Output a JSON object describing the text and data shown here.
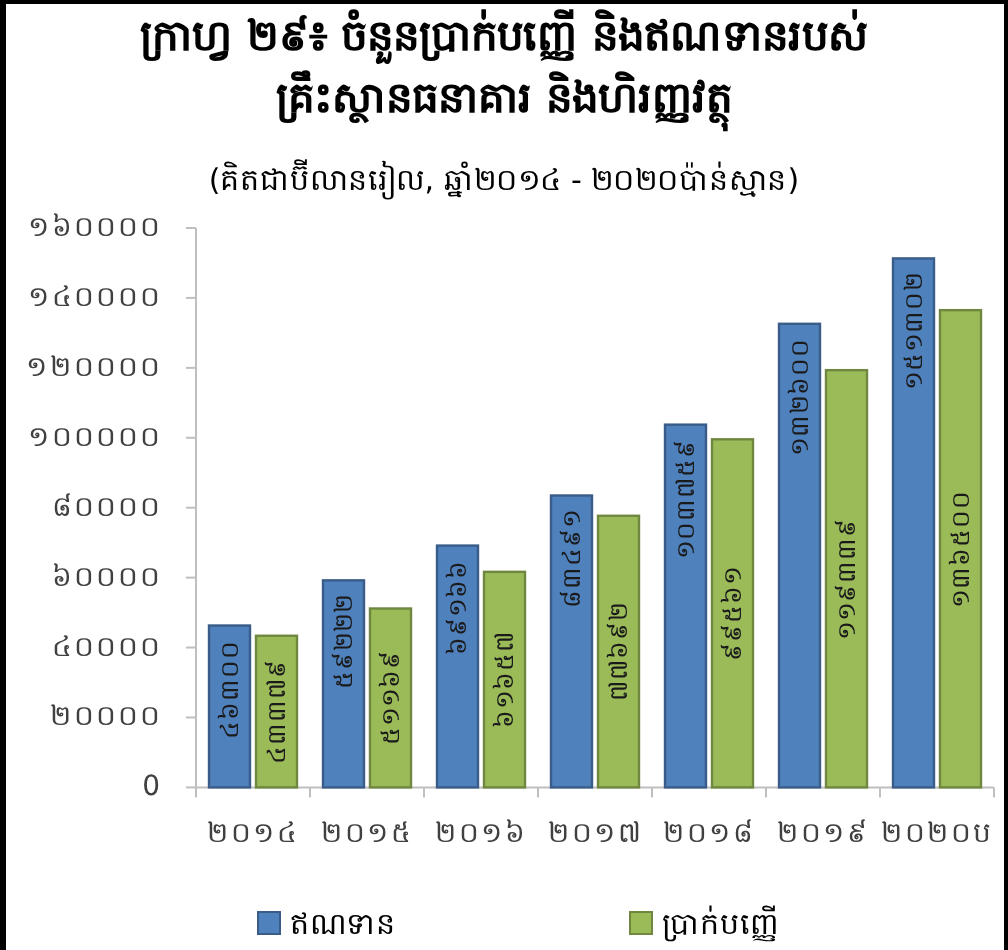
{
  "chart_data": {
    "type": "bar",
    "title": "ក្រាហ្វ ២៩៖ ចំនួនប្រាក់បញ្ញើ និងឥណទានរបស់ គ្រឹះស្ថានធនាគារ និងហិរញ្ញវត្ថុ",
    "subtitle": "(គិតជាប៊ីលានរៀល, ឆ្នាំ២០១៤ - ២០២០ប៉ាន់ស្មាន)",
    "categories": [
      "២០១៤",
      "២០១៥",
      "២០១៦",
      "២០១៧",
      "២០១៨",
      "២០១៩",
      "២០២០ប"
    ],
    "series": [
      {
        "name": "ឥណទាន",
        "color": "#4f81bd",
        "values": [
          46300,
          59222,
          69166,
          83491,
          103759,
          132600,
          151302
        ],
        "value_labels": [
          "៤៦៣០០",
          "៥៩២២២",
          "៦៩១៦៦",
          "៨៣៤៩១",
          "១០៣៧៥៩",
          "១៣២៦០០",
          "១៥១៣០២"
        ]
      },
      {
        "name": "ប្រាក់បញ្ញើ",
        "color": "#9bbb59",
        "values": [
          43379,
          51169,
          61657,
          77692,
          99561,
          119339,
          136500
        ],
        "value_labels": [
          "៤៣៣៧៩",
          "៥១១៦៩",
          "៦១៦៥៧",
          "៧៧៦៩២",
          "៩៩៥៦១",
          "១១៩៣៣៩",
          "១៣៦៥០០"
        ]
      }
    ],
    "ylim": [
      0,
      160000
    ],
    "yticks": [
      0,
      {
        "value": 20000,
        "label": "២០០០០"
      },
      {
        "value": 40000,
        "label": "៤០០០០"
      },
      {
        "value": 60000,
        "label": "៦០០០០"
      },
      {
        "value": 80000,
        "label": "៨០០០០"
      },
      {
        "value": 100000,
        "label": "១០០០០០"
      },
      {
        "value": 120000,
        "label": "១២០០០០"
      },
      {
        "value": 140000,
        "label": "១៤០០០០"
      },
      {
        "value": 160000,
        "label": "១៦០០០០"
      }
    ],
    "legend": "bottom"
  }
}
